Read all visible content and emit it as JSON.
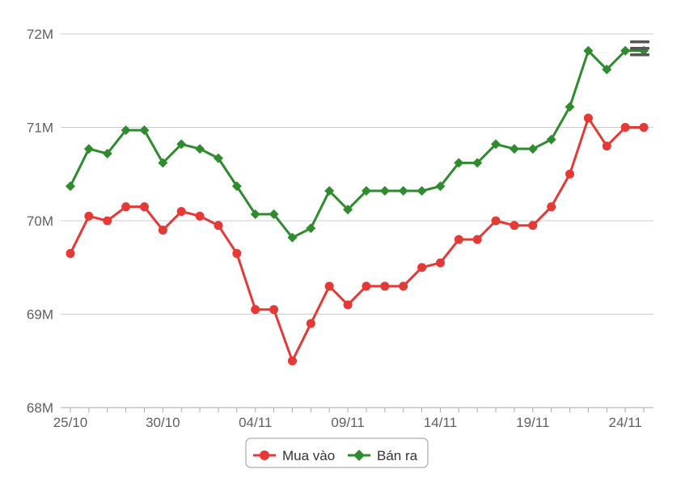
{
  "chart_data": {
    "type": "line",
    "x": [
      "25/10",
      "26/10",
      "27/10",
      "28/10",
      "29/10",
      "30/10",
      "31/10",
      "01/11",
      "02/11",
      "03/11",
      "04/11",
      "05/11",
      "06/11",
      "07/11",
      "08/11",
      "09/11",
      "10/11",
      "11/11",
      "12/11",
      "13/11",
      "14/11",
      "15/11",
      "16/11",
      "17/11",
      "18/11",
      "19/11",
      "20/11",
      "21/11",
      "22/11",
      "23/11",
      "24/11",
      "25/11"
    ],
    "x_tick_labels": [
      "25/10",
      "30/10",
      "04/11",
      "09/11",
      "14/11",
      "19/11",
      "24/11"
    ],
    "y_tick_labels": [
      "72M",
      "71M",
      "70M",
      "69M",
      "68M"
    ],
    "y_ticks": [
      72000000,
      71000000,
      70000000,
      69000000,
      68000000
    ],
    "ylim": [
      68000000,
      72000000
    ],
    "grid": true,
    "legend_position": "bottom-center",
    "series": [
      {
        "name": "Mua vào",
        "color": "#e53935",
        "marker": "circle",
        "values": [
          69650000,
          70050000,
          70000000,
          70150000,
          70150000,
          69900000,
          70100000,
          70050000,
          69950000,
          69650000,
          69050000,
          69050000,
          68500000,
          68900000,
          69300000,
          69100000,
          69300000,
          69300000,
          69300000,
          69500000,
          69550000,
          69800000,
          69800000,
          70000000,
          69950000,
          69950000,
          70150000,
          70500000,
          71100000,
          70800000,
          71000000,
          71000000
        ]
      },
      {
        "name": "Bán ra",
        "color": "#2e8b2e",
        "marker": "diamond",
        "values": [
          70370000,
          70770000,
          70720000,
          70970000,
          70970000,
          70620000,
          70820000,
          70770000,
          70670000,
          70370000,
          70070000,
          70070000,
          69820000,
          69920000,
          70320000,
          70120000,
          70320000,
          70320000,
          70320000,
          70320000,
          70370000,
          70620000,
          70620000,
          70820000,
          70770000,
          70770000,
          70870000,
          71220000,
          71820000,
          71620000,
          71820000,
          71820000
        ]
      }
    ]
  },
  "icons": {
    "menu": "hamburger-menu-icon"
  }
}
